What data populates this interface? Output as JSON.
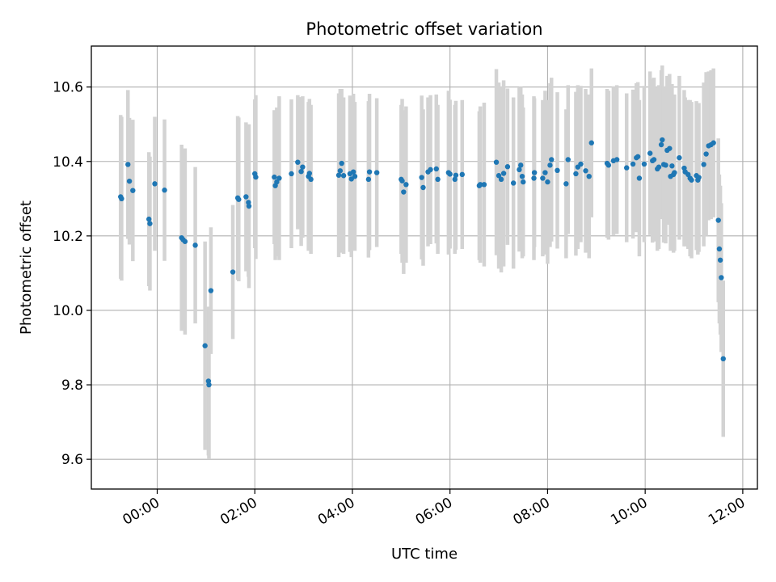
{
  "chart_data": {
    "type": "scatter",
    "title": "Photometric offset variation",
    "xlabel": "UTC time",
    "ylabel": "Photometric offset",
    "x_unit": "hours",
    "xlim": [
      -1.35,
      12.3
    ],
    "ylim": [
      9.52,
      10.71
    ],
    "x_ticks": [
      0,
      2,
      4,
      6,
      8,
      10,
      12
    ],
    "x_tick_labels": [
      "00:00",
      "02:00",
      "04:00",
      "06:00",
      "08:00",
      "10:00",
      "12:00"
    ],
    "y_ticks": [
      9.6,
      9.8,
      10.0,
      10.2,
      10.4,
      10.6
    ],
    "y_tick_labels": [
      "9.6",
      "9.8",
      "10.0",
      "10.2",
      "10.4",
      "10.6"
    ],
    "grid": true,
    "colors": {
      "points": "#1f77b4",
      "errorbars": "#d3d3d3",
      "grid": "#b0b0b0"
    },
    "points": [
      [
        -0.75,
        10.305,
        0.22
      ],
      [
        -0.73,
        10.3,
        0.22
      ],
      [
        -0.6,
        10.392,
        0.2
      ],
      [
        -0.57,
        10.347,
        0.17
      ],
      [
        -0.5,
        10.322,
        0.19
      ],
      [
        -0.17,
        10.245,
        0.18
      ],
      [
        -0.15,
        10.233,
        0.18
      ],
      [
        -0.05,
        10.34,
        0.18
      ],
      [
        0.15,
        10.323,
        0.19
      ],
      [
        0.5,
        10.195,
        0.25
      ],
      [
        0.53,
        10.19,
        0.24
      ],
      [
        0.57,
        10.185,
        0.25
      ],
      [
        0.78,
        10.175,
        0.21
      ],
      [
        0.98,
        9.905,
        0.28
      ],
      [
        1.05,
        9.81,
        0.2
      ],
      [
        1.06,
        9.8,
        0.2
      ],
      [
        1.1,
        10.053,
        0.17
      ],
      [
        1.55,
        10.103,
        0.18
      ],
      [
        1.65,
        10.302,
        0.22
      ],
      [
        1.67,
        10.298,
        0.22
      ],
      [
        1.82,
        10.305,
        0.2
      ],
      [
        1.87,
        10.29,
        0.2
      ],
      [
        1.88,
        10.28,
        0.22
      ],
      [
        2.0,
        10.367,
        0.2
      ],
      [
        2.02,
        10.358,
        0.22
      ],
      [
        2.4,
        10.358,
        0.18
      ],
      [
        2.42,
        10.335,
        0.2
      ],
      [
        2.45,
        10.345,
        0.2
      ],
      [
        2.5,
        10.355,
        0.22
      ],
      [
        2.75,
        10.367,
        0.2
      ],
      [
        2.88,
        10.398,
        0.18
      ],
      [
        2.95,
        10.373,
        0.2
      ],
      [
        2.98,
        10.385,
        0.19
      ],
      [
        3.1,
        10.36,
        0.2
      ],
      [
        3.12,
        10.368,
        0.2
      ],
      [
        3.15,
        10.352,
        0.2
      ],
      [
        3.72,
        10.363,
        0.22
      ],
      [
        3.75,
        10.375,
        0.22
      ],
      [
        3.78,
        10.395,
        0.2
      ],
      [
        3.82,
        10.362,
        0.21
      ],
      [
        3.95,
        10.367,
        0.21
      ],
      [
        3.98,
        10.353,
        0.21
      ],
      [
        4.02,
        10.372,
        0.21
      ],
      [
        4.05,
        10.36,
        0.2
      ],
      [
        4.33,
        10.352,
        0.21
      ],
      [
        4.35,
        10.372,
        0.21
      ],
      [
        4.5,
        10.37,
        0.2
      ],
      [
        5.0,
        10.352,
        0.2
      ],
      [
        5.02,
        10.348,
        0.22
      ],
      [
        5.05,
        10.318,
        0.22
      ],
      [
        5.1,
        10.338,
        0.21
      ],
      [
        5.42,
        10.357,
        0.22
      ],
      [
        5.45,
        10.33,
        0.21
      ],
      [
        5.55,
        10.372,
        0.2
      ],
      [
        5.6,
        10.378,
        0.2
      ],
      [
        5.72,
        10.38,
        0.2
      ],
      [
        5.75,
        10.352,
        0.2
      ],
      [
        5.97,
        10.37,
        0.22
      ],
      [
        6.0,
        10.366,
        0.2
      ],
      [
        6.1,
        10.352,
        0.2
      ],
      [
        6.12,
        10.363,
        0.2
      ],
      [
        6.25,
        10.365,
        0.2
      ],
      [
        6.6,
        10.335,
        0.2
      ],
      [
        6.62,
        10.338,
        0.21
      ],
      [
        6.7,
        10.338,
        0.22
      ],
      [
        6.95,
        10.398,
        0.25
      ],
      [
        7.0,
        10.362,
        0.25
      ],
      [
        7.05,
        10.352,
        0.25
      ],
      [
        7.1,
        10.368,
        0.25
      ],
      [
        7.18,
        10.386,
        0.21
      ],
      [
        7.3,
        10.342,
        0.23
      ],
      [
        7.42,
        10.378,
        0.22
      ],
      [
        7.45,
        10.39,
        0.21
      ],
      [
        7.48,
        10.36,
        0.22
      ],
      [
        7.5,
        10.345,
        0.2
      ],
      [
        7.72,
        10.355,
        0.22
      ],
      [
        7.73,
        10.37,
        0.2
      ],
      [
        7.9,
        10.355,
        0.21
      ],
      [
        7.95,
        10.37,
        0.22
      ],
      [
        8.0,
        10.345,
        0.22
      ],
      [
        8.05,
        10.39,
        0.22
      ],
      [
        8.08,
        10.405,
        0.22
      ],
      [
        8.2,
        10.376,
        0.21
      ],
      [
        8.38,
        10.34,
        0.2
      ],
      [
        8.42,
        10.405,
        0.2
      ],
      [
        8.58,
        10.367,
        0.22
      ],
      [
        8.62,
        10.385,
        0.22
      ],
      [
        8.68,
        10.393,
        0.21
      ],
      [
        8.78,
        10.375,
        0.22
      ],
      [
        8.85,
        10.36,
        0.22
      ],
      [
        8.9,
        10.45,
        0.2
      ],
      [
        9.22,
        10.395,
        0.2
      ],
      [
        9.25,
        10.39,
        0.2
      ],
      [
        9.35,
        10.402,
        0.2
      ],
      [
        9.42,
        10.405,
        0.2
      ],
      [
        9.62,
        10.383,
        0.2
      ],
      [
        9.75,
        10.393,
        0.2
      ],
      [
        9.82,
        10.41,
        0.2
      ],
      [
        9.85,
        10.413,
        0.2
      ],
      [
        9.88,
        10.355,
        0.21
      ],
      [
        9.98,
        10.393,
        0.21
      ],
      [
        10.1,
        10.422,
        0.22
      ],
      [
        10.15,
        10.402,
        0.22
      ],
      [
        10.18,
        10.405,
        0.22
      ],
      [
        10.25,
        10.38,
        0.22
      ],
      [
        10.28,
        10.385,
        0.22
      ],
      [
        10.33,
        10.445,
        0.2
      ],
      [
        10.35,
        10.458,
        0.2
      ],
      [
        10.38,
        10.392,
        0.21
      ],
      [
        10.42,
        10.39,
        0.21
      ],
      [
        10.45,
        10.43,
        0.2
      ],
      [
        10.5,
        10.435,
        0.2
      ],
      [
        10.52,
        10.36,
        0.2
      ],
      [
        10.55,
        10.388,
        0.22
      ],
      [
        10.58,
        10.365,
        0.21
      ],
      [
        10.6,
        10.37,
        0.21
      ],
      [
        10.7,
        10.41,
        0.22
      ],
      [
        10.8,
        10.382,
        0.21
      ],
      [
        10.82,
        10.372,
        0.2
      ],
      [
        10.88,
        10.365,
        0.2
      ],
      [
        10.92,
        10.355,
        0.21
      ],
      [
        10.95,
        10.35,
        0.21
      ],
      [
        11.05,
        10.362,
        0.2
      ],
      [
        11.08,
        10.35,
        0.2
      ],
      [
        11.1,
        10.357,
        0.2
      ],
      [
        11.2,
        10.392,
        0.22
      ],
      [
        11.25,
        10.42,
        0.22
      ],
      [
        11.3,
        10.442,
        0.2
      ],
      [
        11.35,
        10.445,
        0.2
      ],
      [
        11.4,
        10.45,
        0.2
      ],
      [
        11.5,
        10.242,
        0.22
      ],
      [
        11.52,
        10.165,
        0.2
      ],
      [
        11.54,
        10.135,
        0.2
      ],
      [
        11.56,
        10.088,
        0.2
      ],
      [
        11.6,
        9.87,
        0.21
      ]
    ]
  }
}
